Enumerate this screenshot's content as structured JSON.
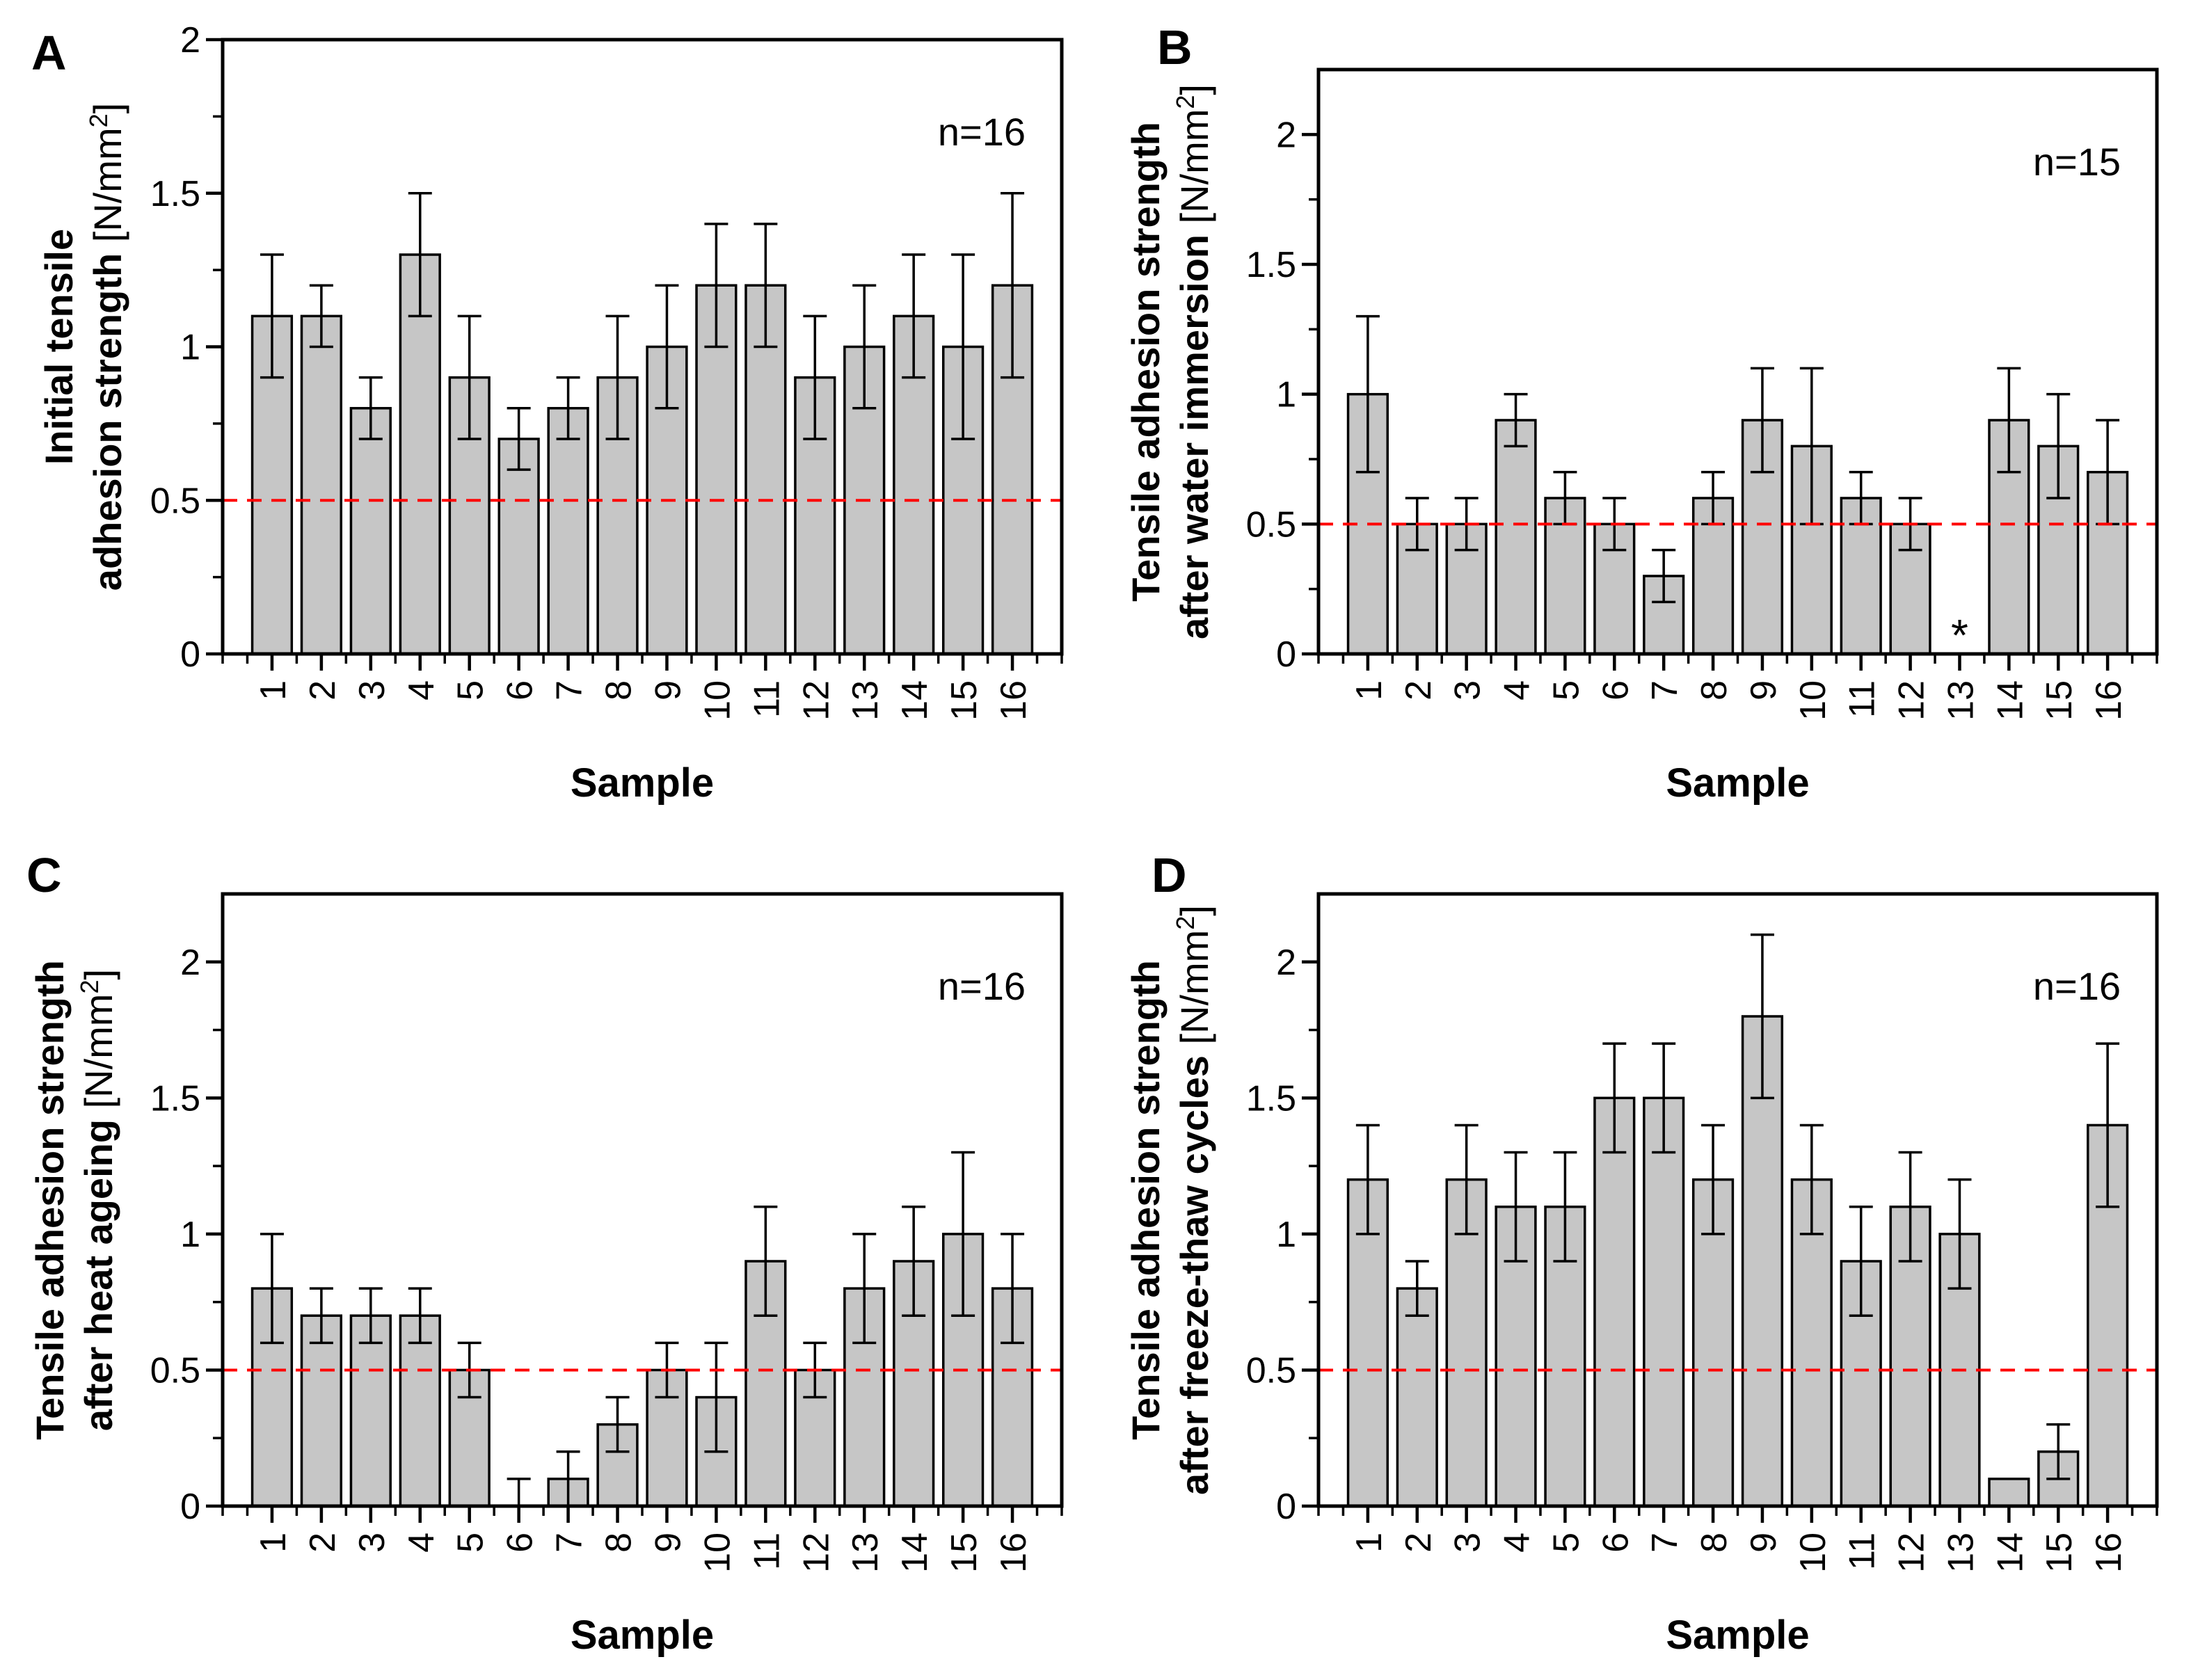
{
  "figure": {
    "background": "#ffffff",
    "bar_fill": "#c6c6c6",
    "bar_stroke": "#000000",
    "threshold_color": "#ff0000",
    "xlabel": "Sample",
    "categories": [
      "1",
      "2",
      "3",
      "4",
      "5",
      "6",
      "7",
      "8",
      "9",
      "10",
      "11",
      "12",
      "13",
      "14",
      "15",
      "16"
    ]
  },
  "chart_data": [
    {
      "type": "bar",
      "panel_label": "A",
      "n_label": "n=16",
      "ylabel_line1_bold": "Initial tensile",
      "ylabel_line2_bold": "adhesion strength",
      "ylabel_unit_pre": " [N/mm",
      "ylabel_unit_sup": "2",
      "ylabel_unit_post": "]",
      "xlabel": "Sample",
      "categories": [
        "1",
        "2",
        "3",
        "4",
        "5",
        "6",
        "7",
        "8",
        "9",
        "10",
        "11",
        "12",
        "13",
        "14",
        "15",
        "16"
      ],
      "values": [
        1.1,
        1.1,
        0.8,
        1.3,
        0.9,
        0.7,
        0.8,
        0.9,
        1.0,
        1.2,
        1.2,
        0.9,
        1.0,
        1.1,
        1.0,
        1.2
      ],
      "err_low": [
        0.9,
        1.0,
        0.7,
        1.1,
        0.7,
        0.6,
        0.7,
        0.7,
        0.8,
        1.0,
        1.0,
        0.7,
        0.8,
        0.9,
        0.7,
        0.9
      ],
      "err_high": [
        1.3,
        1.2,
        0.9,
        1.5,
        1.1,
        0.8,
        0.9,
        1.1,
        1.2,
        1.4,
        1.4,
        1.1,
        1.2,
        1.3,
        1.3,
        1.5
      ],
      "ylim": [
        0,
        2
      ],
      "yticks": [
        0,
        0.5,
        1,
        1.5,
        2
      ],
      "ytick_labels": [
        "0",
        "0.5",
        "1",
        "1.5",
        "2"
      ],
      "threshold": 0.5,
      "grid": false,
      "missing": null
    },
    {
      "type": "bar",
      "panel_label": "B",
      "n_label": "n=15",
      "ylabel_line1_bold": "Tensile adhesion strength",
      "ylabel_line2_bold": "after water immersion",
      "ylabel_unit_pre": " [N/mm",
      "ylabel_unit_sup": "2",
      "ylabel_unit_post": "]",
      "xlabel": "Sample",
      "categories": [
        "1",
        "2",
        "3",
        "4",
        "5",
        "6",
        "7",
        "8",
        "9",
        "10",
        "11",
        "12",
        "13",
        "14",
        "15",
        "16"
      ],
      "values": [
        1.0,
        0.5,
        0.5,
        0.9,
        0.6,
        0.5,
        0.3,
        0.6,
        0.9,
        0.8,
        0.6,
        0.5,
        null,
        0.9,
        0.8,
        0.7
      ],
      "err_low": [
        0.7,
        0.4,
        0.4,
        0.8,
        0.5,
        0.4,
        0.2,
        0.5,
        0.7,
        0.5,
        0.5,
        0.4,
        null,
        0.7,
        0.6,
        0.5
      ],
      "err_high": [
        1.3,
        0.6,
        0.6,
        1.0,
        0.7,
        0.6,
        0.4,
        0.7,
        1.1,
        1.1,
        0.7,
        0.6,
        null,
        1.1,
        1.0,
        0.9
      ],
      "ylim": [
        0,
        2.25
      ],
      "yticks": [
        0,
        0.5,
        1,
        1.5,
        2
      ],
      "ytick_labels": [
        "0",
        "0.5",
        "1",
        "1.5",
        "2"
      ],
      "threshold": 0.5,
      "grid": false,
      "missing": {
        "index": 12,
        "symbol": "*"
      }
    },
    {
      "type": "bar",
      "panel_label": "C",
      "n_label": "n=16",
      "ylabel_line1_bold": "Tensile adhesion strength",
      "ylabel_line2_bold": "after heat ageing",
      "ylabel_unit_pre": " [N/mm",
      "ylabel_unit_sup": "2",
      "ylabel_unit_post": "]",
      "xlabel": "Sample",
      "categories": [
        "1",
        "2",
        "3",
        "4",
        "5",
        "6",
        "7",
        "8",
        "9",
        "10",
        "11",
        "12",
        "13",
        "14",
        "15",
        "16"
      ],
      "values": [
        0.8,
        0.7,
        0.7,
        0.7,
        0.5,
        0.0,
        0.1,
        0.3,
        0.5,
        0.4,
        0.9,
        0.5,
        0.8,
        0.9,
        1.0,
        0.8
      ],
      "err_low": [
        0.6,
        0.6,
        0.6,
        0.6,
        0.4,
        0.0,
        0.0,
        0.2,
        0.4,
        0.2,
        0.7,
        0.4,
        0.6,
        0.7,
        0.7,
        0.6
      ],
      "err_high": [
        1.0,
        0.8,
        0.8,
        0.8,
        0.6,
        0.1,
        0.2,
        0.4,
        0.6,
        0.6,
        1.1,
        0.6,
        1.0,
        1.1,
        1.3,
        1.0
      ],
      "ylim": [
        0,
        2.25
      ],
      "yticks": [
        0,
        0.5,
        1,
        1.5,
        2
      ],
      "ytick_labels": [
        "0",
        "0.5",
        "1",
        "1.5",
        "2"
      ],
      "threshold": 0.5,
      "grid": false,
      "missing": null
    },
    {
      "type": "bar",
      "panel_label": "D",
      "n_label": "n=16",
      "ylabel_line1_bold": "Tensile adhesion strength",
      "ylabel_line2_bold": "after freeze-thaw cycles",
      "ylabel_unit_pre": " [N/mm",
      "ylabel_unit_sup": "2",
      "ylabel_unit_post": "]",
      "xlabel": "Sample",
      "categories": [
        "1",
        "2",
        "3",
        "4",
        "5",
        "6",
        "7",
        "8",
        "9",
        "10",
        "11",
        "12",
        "13",
        "14",
        "15",
        "16"
      ],
      "values": [
        1.2,
        0.8,
        1.2,
        1.1,
        1.1,
        1.5,
        1.5,
        1.2,
        1.8,
        1.2,
        0.9,
        1.1,
        1.0,
        0.1,
        0.2,
        1.4
      ],
      "err_low": [
        1.0,
        0.7,
        1.0,
        0.9,
        0.9,
        1.3,
        1.3,
        1.0,
        1.5,
        1.0,
        0.7,
        0.9,
        0.8,
        null,
        0.1,
        1.1
      ],
      "err_high": [
        1.4,
        0.9,
        1.4,
        1.3,
        1.3,
        1.7,
        1.7,
        1.4,
        2.1,
        1.4,
        1.1,
        1.3,
        1.2,
        null,
        0.3,
        1.7
      ],
      "ylim": [
        0,
        2.25
      ],
      "yticks": [
        0,
        0.5,
        1,
        1.5,
        2
      ],
      "ytick_labels": [
        "0",
        "0.5",
        "1",
        "1.5",
        "2"
      ],
      "threshold": 0.5,
      "grid": false,
      "missing": null
    }
  ]
}
